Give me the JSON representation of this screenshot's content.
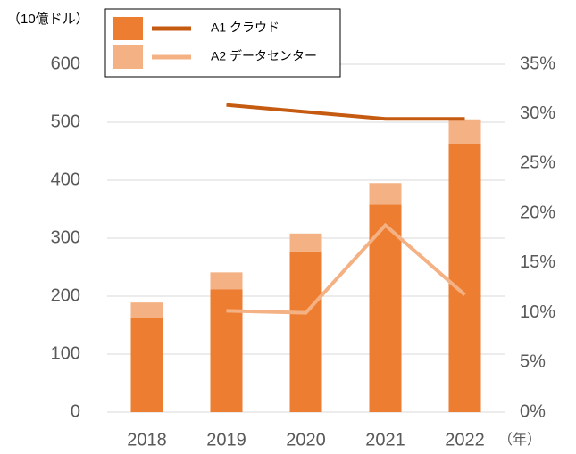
{
  "chart_data": {
    "type": "stacked_bar_line",
    "y_label": "（10億ドル）",
    "x_label": "（年）",
    "categories": [
      "2018",
      "2019",
      "2020",
      "2021",
      "2022"
    ],
    "series": [
      {
        "name": "A1 クラウド",
        "color": "#ed7d31",
        "values": [
          163,
          212,
          277,
          358,
          463
        ],
        "line_color": "#c55a11",
        "axis": "y2",
        "line_values": [
          null,
          30.9,
          30.2,
          29.5,
          29.5
        ]
      },
      {
        "name": "A2 データセンター",
        "color": "#f4b183",
        "values": [
          26,
          29,
          31,
          37,
          42
        ],
        "line_color": "#f4b183",
        "axis": "y2",
        "line_values": [
          null,
          10.2,
          10.0,
          18.8,
          11.8
        ]
      }
    ],
    "ylim": [
      0,
      600
    ],
    "yticks": [
      0,
      100,
      200,
      300,
      400,
      500,
      600
    ],
    "y2lim": [
      0,
      35
    ],
    "y2ticks": [
      {
        "value": 0,
        "label": "0%"
      },
      {
        "value": 5,
        "label": "5%"
      },
      {
        "value": 10,
        "label": "10%"
      },
      {
        "value": 15,
        "label": "15%"
      },
      {
        "value": 20,
        "label": "20%"
      },
      {
        "value": 25,
        "label": "25%"
      },
      {
        "value": 30,
        "label": "30%"
      },
      {
        "value": 35,
        "label": "35%"
      }
    ],
    "grid": true,
    "legend": "top-left"
  }
}
